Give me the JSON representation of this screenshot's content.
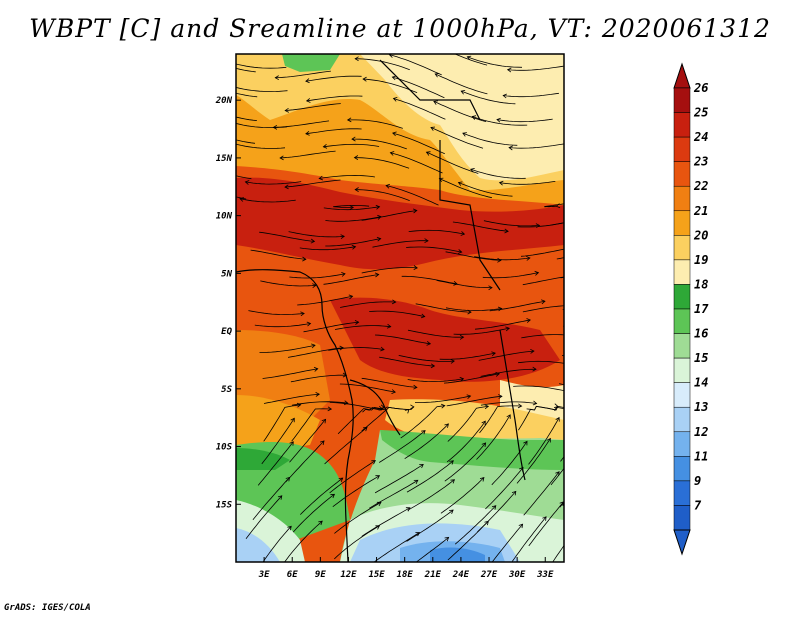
{
  "title": "WBPT [C] and Sreamline at 1000hPa, VT: 2020061312",
  "credit": "GrADS: IGES/COLA",
  "map": {
    "lon_range": [
      0,
      35
    ],
    "lat_range": [
      -20,
      24
    ],
    "x_ticks": [
      {
        "value": 3,
        "label": "3E"
      },
      {
        "value": 6,
        "label": "6E"
      },
      {
        "value": 9,
        "label": "9E"
      },
      {
        "value": 12,
        "label": "12E"
      },
      {
        "value": 15,
        "label": "15E"
      },
      {
        "value": 18,
        "label": "18E"
      },
      {
        "value": 21,
        "label": "21E"
      },
      {
        "value": 24,
        "label": "24E"
      },
      {
        "value": 27,
        "label": "27E"
      },
      {
        "value": 30,
        "label": "30E"
      },
      {
        "value": 33,
        "label": "33E"
      }
    ],
    "y_ticks": [
      {
        "value": 20,
        "label": "20N"
      },
      {
        "value": 15,
        "label": "15N"
      },
      {
        "value": 10,
        "label": "10N"
      },
      {
        "value": 5,
        "label": "5N"
      },
      {
        "value": 0,
        "label": "EQ"
      },
      {
        "value": -5,
        "label": "5S"
      },
      {
        "value": -10,
        "label": "10S"
      },
      {
        "value": -15,
        "label": "15S"
      }
    ]
  },
  "colorbar": {
    "levels": [
      "26",
      "25",
      "24",
      "23",
      "22",
      "21",
      "20",
      "19",
      "18",
      "17",
      "16",
      "15",
      "14",
      "13",
      "12",
      "11",
      "9",
      "7"
    ],
    "colors": [
      "#a50f0f",
      "#c8200f",
      "#dc3a10",
      "#e8550f",
      "#f07f12",
      "#f5a21a",
      "#fbd060",
      "#fdedb0",
      "#2ea837",
      "#5dc556",
      "#9fdc95",
      "#daf4d8",
      "#d8ecfb",
      "#a9d1f5",
      "#74b2ee",
      "#4590e2",
      "#2a6fd6",
      "#1f5ec8"
    ]
  }
}
